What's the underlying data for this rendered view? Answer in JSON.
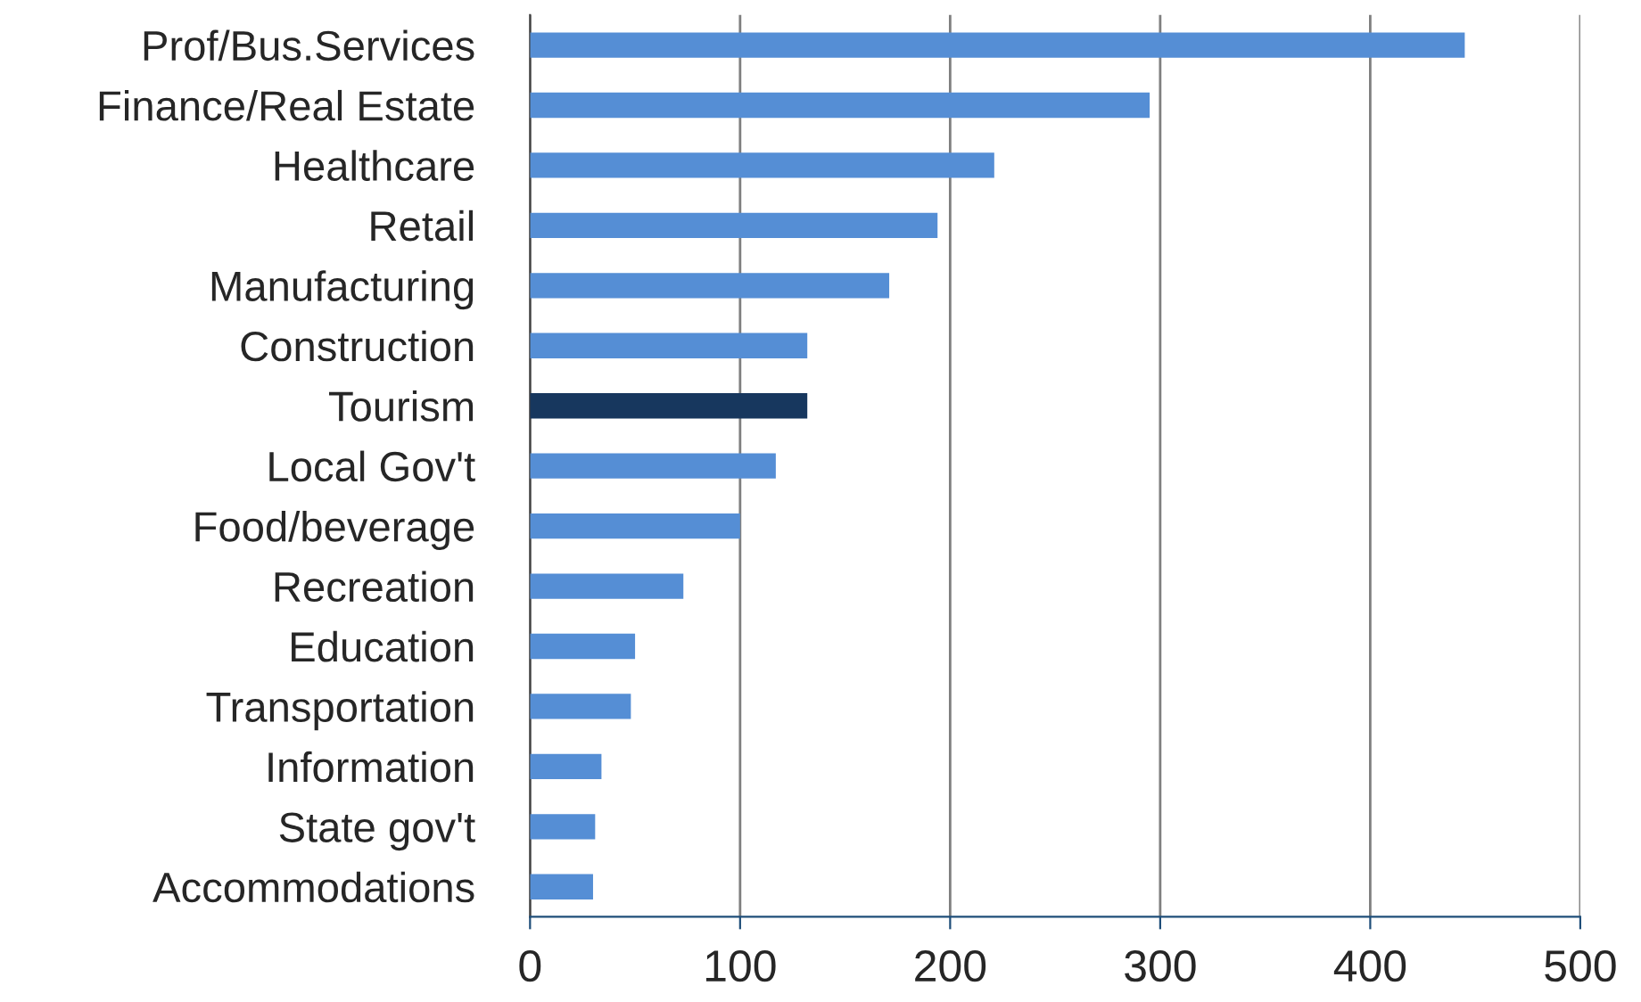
{
  "chart_data": {
    "type": "bar",
    "orientation": "horizontal",
    "categories": [
      "Prof/Bus.Services",
      "Finance/Real Estate",
      "Healthcare",
      "Retail",
      "Manufacturing",
      "Construction",
      "Tourism",
      "Local Gov't",
      "Food/beverage",
      "Recreation",
      "Education",
      "Transportation",
      "Information",
      "State gov't",
      "Accommodations"
    ],
    "values": [
      445,
      295,
      221,
      194,
      171,
      132,
      132,
      117,
      100,
      73,
      50,
      48,
      34,
      31,
      30
    ],
    "colors": [
      "#558ed5",
      "#558ed5",
      "#558ed5",
      "#558ed5",
      "#558ed5",
      "#558ed5",
      "#17375e",
      "#558ed5",
      "#558ed5",
      "#558ed5",
      "#558ed5",
      "#558ed5",
      "#558ed5",
      "#558ed5",
      "#558ed5"
    ],
    "xlim": [
      0,
      500
    ],
    "xticks": [
      0,
      100,
      200,
      300,
      400,
      500
    ],
    "grid": "x"
  }
}
